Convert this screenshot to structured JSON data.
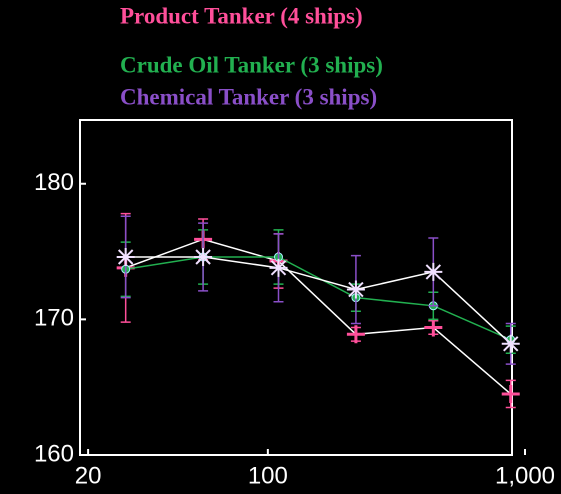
{
  "chart_data": {
    "type": "line",
    "x": [
      28,
      56,
      110,
      220,
      440,
      880
    ],
    "series": [
      {
        "name": "Product Tanker (4 ships)",
        "color": "#ff4f9a",
        "line_color": "#ffffff",
        "marker": "plus",
        "values": [
          173.8,
          175.9,
          174.3,
          168.9,
          169.4,
          164.5
        ],
        "errors": [
          4,
          1.5,
          2,
          0.5,
          0.5,
          1
        ]
      },
      {
        "name": "Crude Oil Tanker (3 ships)",
        "color": "#22b050",
        "line_color": "#22b050",
        "marker": "circle",
        "values": [
          173.7,
          174.6,
          174.6,
          171.6,
          171.0,
          168.5
        ],
        "errors": [
          2,
          2,
          2,
          1,
          1,
          1
        ]
      },
      {
        "name": "Chemical Tanker (3 ships)",
        "color": "#8a4fc8",
        "line_color": "#ffffff",
        "marker": "star",
        "values": [
          174.6,
          174.6,
          173.8,
          172.2,
          173.5,
          168.2
        ],
        "errors": [
          3,
          2.5,
          2.5,
          2.5,
          2.5,
          1.5
        ]
      }
    ],
    "xscale": "log",
    "xlim": [
      18.6,
      890
    ],
    "xticks": [
      20,
      100,
      {
        "value": 1000,
        "label": "1,000"
      }
    ],
    "ylim": [
      160,
      184.7
    ],
    "yticks": [
      160,
      170,
      180
    ],
    "grid": false
  }
}
